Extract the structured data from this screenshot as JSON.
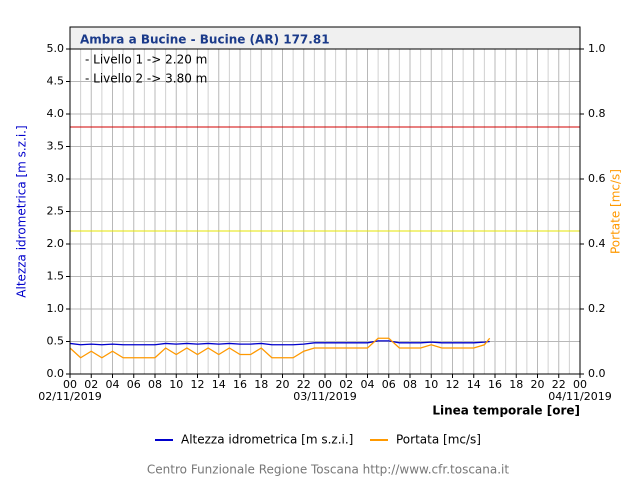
{
  "chart_data": {
    "type": "line",
    "title": "Ambra a Bucine - Bucine (AR) 177.81",
    "ylabel": "Altezza idrometrica [m s.z.i.]",
    "y2label": "Portate [mc/s]",
    "xlabel": "Linea temporale [ore]",
    "footer": "Centro Funzionale Regione Toscana http://www.cfr.toscana.it",
    "xlim": [
      0,
      48
    ],
    "xticks": [
      {
        "value": 0,
        "label": "00"
      },
      {
        "value": 2,
        "label": "02"
      },
      {
        "value": 4,
        "label": "04"
      },
      {
        "value": 6,
        "label": "06"
      },
      {
        "value": 8,
        "label": "08"
      },
      {
        "value": 10,
        "label": "10"
      },
      {
        "value": 12,
        "label": "12"
      },
      {
        "value": 14,
        "label": "14"
      },
      {
        "value": 16,
        "label": "16"
      },
      {
        "value": 18,
        "label": "18"
      },
      {
        "value": 20,
        "label": "20"
      },
      {
        "value": 22,
        "label": "22"
      },
      {
        "value": 24,
        "label": "00"
      },
      {
        "value": 26,
        "label": "02"
      },
      {
        "value": 28,
        "label": "04"
      },
      {
        "value": 30,
        "label": "06"
      },
      {
        "value": 32,
        "label": "08"
      },
      {
        "value": 34,
        "label": "10"
      },
      {
        "value": 36,
        "label": "12"
      },
      {
        "value": 38,
        "label": "14"
      },
      {
        "value": 40,
        "label": "16"
      },
      {
        "value": 42,
        "label": "18"
      },
      {
        "value": 44,
        "label": "20"
      },
      {
        "value": 46,
        "label": "22"
      },
      {
        "value": 48,
        "label": "00"
      }
    ],
    "xdates": [
      {
        "value": 0,
        "label": "02/11/2019"
      },
      {
        "value": 24,
        "label": "03/11/2019"
      },
      {
        "value": 48,
        "label": "04/11/2019"
      }
    ],
    "ylim": [
      0,
      5
    ],
    "yticks": [
      {
        "value": 0,
        "label": "0.0"
      },
      0.5,
      {
        "value": 1,
        "label": "1.0"
      },
      1.5,
      {
        "value": 2,
        "label": "2.0"
      },
      2.5,
      {
        "value": 3,
        "label": "3.0"
      },
      3.5,
      {
        "value": 4,
        "label": "4.0"
      },
      4.5,
      {
        "value": 5,
        "label": "5.0"
      }
    ],
    "y2lim": [
      0,
      1
    ],
    "y2ticks": [
      {
        "value": 0,
        "label": "0.0"
      },
      0.2,
      0.4,
      0.6,
      0.8,
      {
        "value": 1,
        "label": "1.0"
      }
    ],
    "grid": true,
    "thresholds": [
      {
        "label": "- Livello 1 -> 2.20 m",
        "value": 2.2,
        "color": "#e6e600"
      },
      {
        "label": "- Livello 2 -> 3.80 m",
        "value": 3.8,
        "color": "#d00000"
      }
    ],
    "x": [
      0,
      1,
      2,
      3,
      4,
      5,
      6,
      7,
      8,
      9,
      10,
      11,
      12,
      13,
      14,
      15,
      16,
      17,
      18,
      19,
      20,
      21,
      22,
      23,
      24,
      25,
      26,
      27,
      28,
      29,
      30,
      31,
      32,
      33,
      34,
      35,
      36,
      37,
      38,
      39,
      39.5
    ],
    "series": [
      {
        "name": "Altezza idrometrica [m s.z.i.]",
        "color": "#0000cc",
        "axis": "y",
        "values": [
          0.47,
          0.45,
          0.46,
          0.45,
          0.46,
          0.45,
          0.45,
          0.45,
          0.45,
          0.47,
          0.46,
          0.47,
          0.46,
          0.47,
          0.46,
          0.47,
          0.46,
          0.46,
          0.47,
          0.45,
          0.45,
          0.45,
          0.46,
          0.48,
          0.48,
          0.48,
          0.48,
          0.48,
          0.48,
          0.51,
          0.51,
          0.48,
          0.48,
          0.48,
          0.49,
          0.48,
          0.48,
          0.48,
          0.48,
          0.49,
          0.5
        ]
      },
      {
        "name": "Portata [mc/s]",
        "color": "#ff9900",
        "axis": "y2",
        "values": [
          0.08,
          0.05,
          0.07,
          0.05,
          0.07,
          0.05,
          0.05,
          0.05,
          0.05,
          0.08,
          0.06,
          0.08,
          0.06,
          0.08,
          0.06,
          0.08,
          0.06,
          0.06,
          0.08,
          0.05,
          0.05,
          0.05,
          0.07,
          0.08,
          0.08,
          0.08,
          0.08,
          0.08,
          0.08,
          0.11,
          0.11,
          0.08,
          0.08,
          0.08,
          0.09,
          0.08,
          0.08,
          0.08,
          0.08,
          0.09,
          0.11
        ]
      }
    ]
  }
}
